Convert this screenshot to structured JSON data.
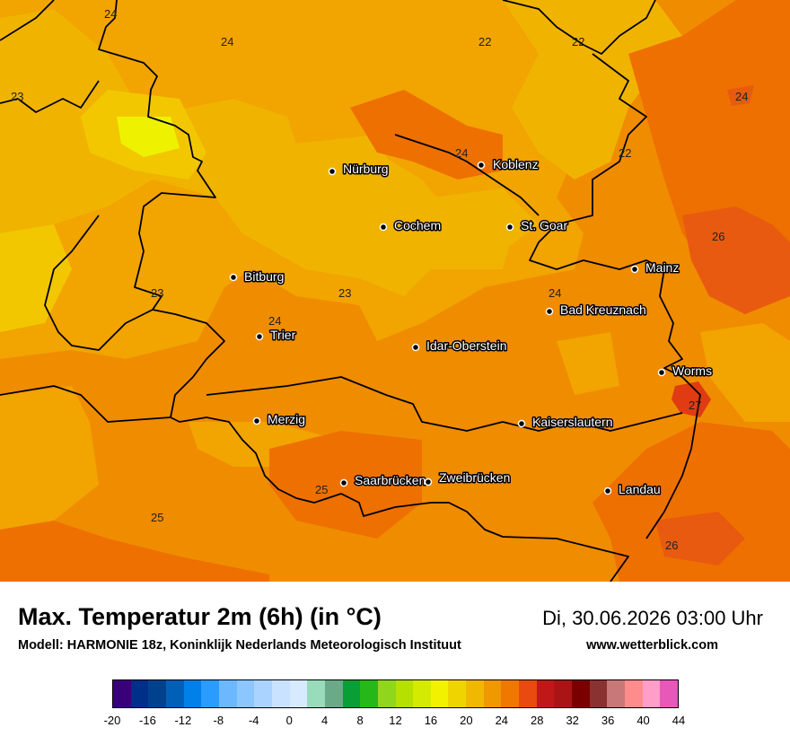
{
  "title": "Max. Temperatur 2m (6h) (in °C)",
  "datetime": "Di, 30.06.2026 03:00 Uhr",
  "model": "Modell: HARMONIE 18z, Koninklijk Nederlands Meteorologisch Instituut",
  "site": "www.wetterblick.com",
  "cities": [
    "Nürburg",
    "Koblenz",
    "Cochem",
    "St. Goar",
    "Bitburg",
    "Mainz",
    "Trier",
    "Bad Kreuznach",
    "Idar-Oberstein",
    "Worms",
    "Merzig",
    "Kaiserslautern",
    "Saarbrücken",
    "Zweibrücken",
    "Landau"
  ],
  "isoline_labels": [
    "24",
    "24",
    "22",
    "22",
    "23",
    "24",
    "24",
    "22",
    "26",
    "23",
    "23",
    "24",
    "24",
    "27",
    "25",
    "25",
    "26"
  ],
  "legend": {
    "ticks": [
      "-20",
      "-16",
      "-12",
      "-8",
      "-4",
      "0",
      "4",
      "8",
      "12",
      "16",
      "20",
      "24",
      "28",
      "32",
      "36",
      "40",
      "44"
    ],
    "colors": [
      "#3a007a",
      "#002f8a",
      "#00418e",
      "#0060b8",
      "#0080e8",
      "#2a9cff",
      "#6cb8ff",
      "#8cc6ff",
      "#aad4ff",
      "#c8e2ff",
      "#d8eaff",
      "#98dcbc",
      "#6aaa88",
      "#0a9e36",
      "#26b818",
      "#90d61c",
      "#b6e000",
      "#d4ea00",
      "#f2f200",
      "#f0d400",
      "#f0b800",
      "#f09800",
      "#f07800",
      "#e84a10",
      "#c01818",
      "#aa1414",
      "#7a0000",
      "#8a3232",
      "#c87878",
      "#ff8c8c",
      "#ff9ec8",
      "#e858b8"
    ]
  },
  "colors": {
    "t20": "#f2c700",
    "t22": "#f0b400",
    "t23": "#f2a400",
    "t24": "#f08c00",
    "t25": "#ee7000",
    "t26": "#e85a10",
    "t27": "#e03b12",
    "t19": "#eef200",
    "border": "#000000"
  }
}
